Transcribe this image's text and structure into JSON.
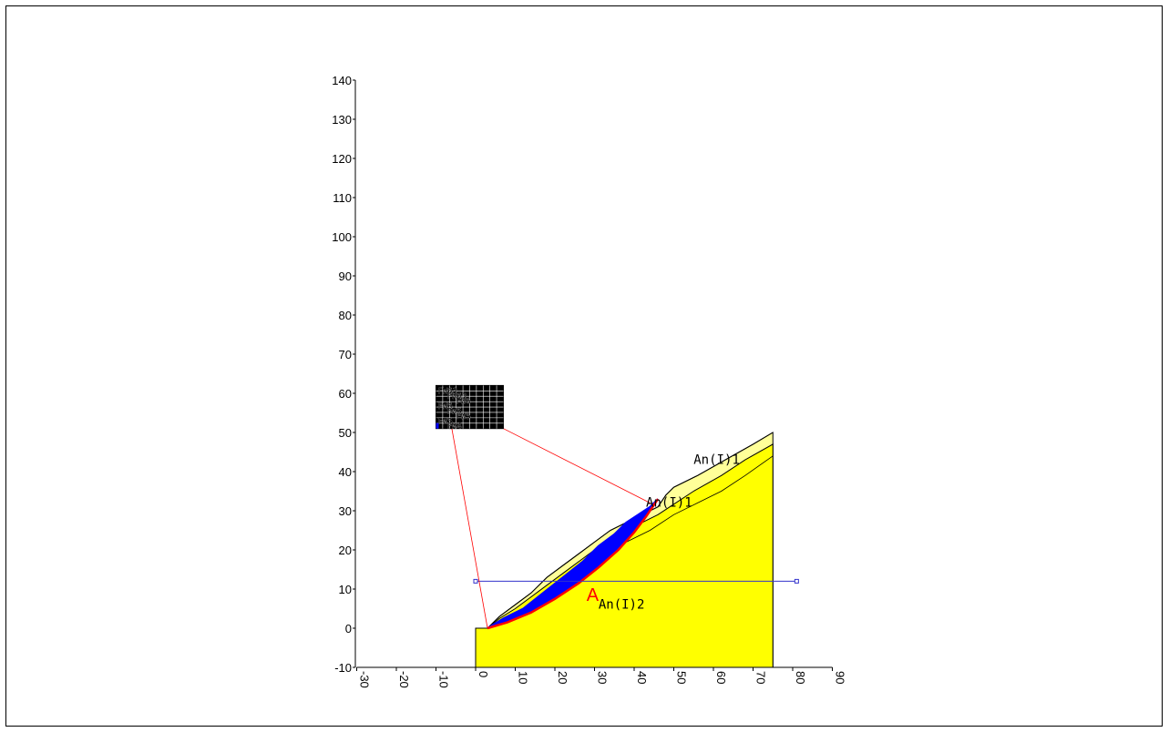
{
  "chart_data": {
    "type": "scatter",
    "xlim": [
      -30,
      90
    ],
    "ylim": [
      -10,
      140
    ],
    "x_ticks": [
      "-30",
      "-20",
      "-10",
      "0",
      "10",
      "20",
      "30",
      "40",
      "50",
      "60",
      "70",
      "80",
      "90"
    ],
    "y_ticks": [
      "-10",
      "0",
      "10",
      "20",
      "30",
      "40",
      "50",
      "60",
      "70",
      "80",
      "90",
      "100",
      "110",
      "120",
      "130",
      "140"
    ],
    "ground_surface": [
      [
        0,
        0
      ],
      [
        3,
        0
      ],
      [
        6,
        3
      ],
      [
        10,
        6
      ],
      [
        14,
        9
      ],
      [
        18,
        13
      ],
      [
        22,
        16
      ],
      [
        26,
        19
      ],
      [
        30,
        22
      ],
      [
        34,
        25
      ],
      [
        38,
        27
      ],
      [
        42,
        29
      ],
      [
        46,
        31
      ],
      [
        48,
        34
      ],
      [
        50,
        36
      ],
      [
        56,
        39
      ],
      [
        63,
        43
      ],
      [
        70,
        47
      ],
      [
        75,
        50
      ]
    ],
    "layer_boundary_1": [
      [
        6,
        2.5
      ],
      [
        10,
        5
      ],
      [
        14,
        8
      ],
      [
        18,
        11
      ],
      [
        22,
        14
      ],
      [
        26,
        17
      ],
      [
        30,
        20
      ],
      [
        34,
        23
      ],
      [
        38,
        25
      ],
      [
        42,
        27
      ],
      [
        46,
        29
      ],
      [
        49,
        31
      ],
      [
        55,
        35
      ],
      [
        62,
        39
      ],
      [
        68,
        43
      ],
      [
        75,
        47
      ]
    ],
    "layer_boundary_2": [
      [
        14,
        6
      ],
      [
        20,
        10
      ],
      [
        26,
        14
      ],
      [
        32,
        18
      ],
      [
        38,
        22
      ],
      [
        44,
        25
      ],
      [
        50,
        29
      ],
      [
        56,
        32
      ],
      [
        62,
        35
      ],
      [
        68,
        39
      ],
      [
        75,
        44
      ]
    ],
    "slip_surface": [
      [
        3,
        0
      ],
      [
        8,
        1.5
      ],
      [
        14,
        4
      ],
      [
        20,
        7.5
      ],
      [
        26,
        11.5
      ],
      [
        31,
        15.5
      ],
      [
        36,
        20
      ],
      [
        40,
        24.5
      ],
      [
        43,
        28.5
      ],
      [
        46,
        33
      ]
    ],
    "sliding_mass_top": [
      [
        3,
        0
      ],
      [
        7,
        2.5
      ],
      [
        12,
        5
      ],
      [
        17,
        9
      ],
      [
        22,
        13
      ],
      [
        27,
        17
      ],
      [
        31,
        21
      ],
      [
        35,
        24
      ],
      [
        38,
        27
      ],
      [
        41,
        29
      ],
      [
        44,
        31
      ],
      [
        46,
        33
      ]
    ],
    "water_level": {
      "y": 12,
      "x_start": 0,
      "x_end": 81
    },
    "grid_box": {
      "x_start": -10,
      "x_end": 7,
      "y_start": 51,
      "y_end": 62
    },
    "red_lines": [
      [
        [
          -6,
          51
        ],
        [
          3,
          0
        ]
      ],
      [
        [
          7,
          51
        ],
        [
          44,
          32
        ]
      ]
    ],
    "labels": [
      {
        "text": "An(I)1",
        "x": 55,
        "y": 42
      },
      {
        "text": "An(I)1",
        "x": 43,
        "y": 31
      },
      {
        "text": "An(I)2",
        "x": 31,
        "y": 5
      },
      {
        "text": "A",
        "x": 28,
        "y": 7
      }
    ]
  },
  "grid_text": [
    "FW63",
    "FW63",
    "FW6",
    "FW6",
    "FW5",
    "FW5",
    "FW5",
    "FW4"
  ],
  "colors": {
    "ground_fill": "#ffff00",
    "layer_fill": "#ffff99",
    "sliding_mass": "#0000ff",
    "slip_line": "#ff0000",
    "water_line": "#3333cc",
    "red_line": "#ff0000",
    "grid": "#000000"
  }
}
